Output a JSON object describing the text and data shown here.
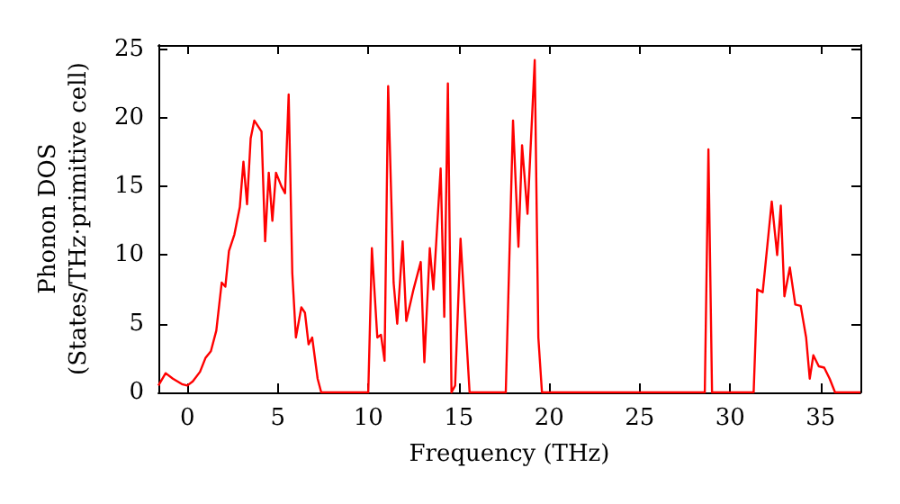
{
  "chart_data": {
    "type": "line",
    "xlabel": "Frequency (THz)",
    "ylabel": "Phonon DOS\n(States/THz·primitive cell)",
    "xlim": [
      -1.6,
      37.2
    ],
    "ylim": [
      0,
      25.3
    ],
    "xticks": [
      0,
      5,
      10,
      15,
      20,
      25,
      30,
      35
    ],
    "yticks": [
      0,
      5,
      10,
      15,
      20,
      25
    ],
    "grid": false,
    "marker": "none",
    "line_style": "solid",
    "series": [
      {
        "color": "#ff0000",
        "x": [
          -1.6,
          -1.2,
          -0.8,
          -0.3,
          0,
          0.3,
          0.7,
          1.0,
          1.3,
          1.6,
          1.9,
          2.1,
          2.3,
          2.6,
          2.9,
          3.1,
          3.3,
          3.5,
          3.7,
          4.1,
          4.3,
          4.5,
          4.7,
          4.9,
          5.2,
          5.4,
          5.6,
          5.8,
          6.0,
          6.3,
          6.5,
          6.7,
          6.9,
          7.2,
          7.4,
          10.0,
          10.2,
          10.5,
          10.7,
          10.9,
          11.1,
          11.4,
          11.6,
          11.9,
          12.1,
          12.5,
          12.9,
          13.1,
          13.4,
          13.6,
          14.0,
          14.2,
          14.4,
          14.6,
          14.8,
          15.1,
          15.6,
          17.6,
          18.0,
          18.3,
          18.5,
          18.8,
          19.2,
          19.4,
          19.6,
          28.6,
          28.8,
          29.0,
          31.3,
          31.5,
          31.8,
          32.3,
          32.6,
          32.8,
          33.0,
          33.3,
          33.6,
          33.9,
          34.2,
          34.4,
          34.6,
          34.9,
          35.2,
          35.5,
          35.8,
          37.2
        ],
        "values": [
          0.5,
          1.4,
          1.0,
          0.6,
          0.5,
          0.8,
          1.5,
          2.5,
          3.0,
          4.5,
          8.0,
          7.7,
          10.3,
          11.5,
          13.5,
          16.8,
          13.7,
          18.5,
          19.8,
          19.0,
          11.0,
          16.0,
          12.5,
          16.0,
          15.0,
          14.5,
          21.7,
          8.7,
          4.0,
          6.2,
          5.8,
          3.5,
          4.0,
          1.0,
          0,
          0,
          10.5,
          4.0,
          4.2,
          2.3,
          22.3,
          8,
          5,
          11,
          5.2,
          7.5,
          9.5,
          2.2,
          10.5,
          7.5,
          16.3,
          5.5,
          22.5,
          0,
          0.5,
          11.2,
          0,
          0,
          19.8,
          10.6,
          18.0,
          13.0,
          24.2,
          4,
          0,
          0,
          17.7,
          0,
          0,
          7.5,
          7.3,
          13.9,
          10.0,
          13.6,
          7.0,
          9.1,
          6.4,
          6.3,
          4.0,
          1.0,
          2.7,
          1.9,
          1.8,
          1.0,
          0,
          0
        ]
      }
    ]
  }
}
